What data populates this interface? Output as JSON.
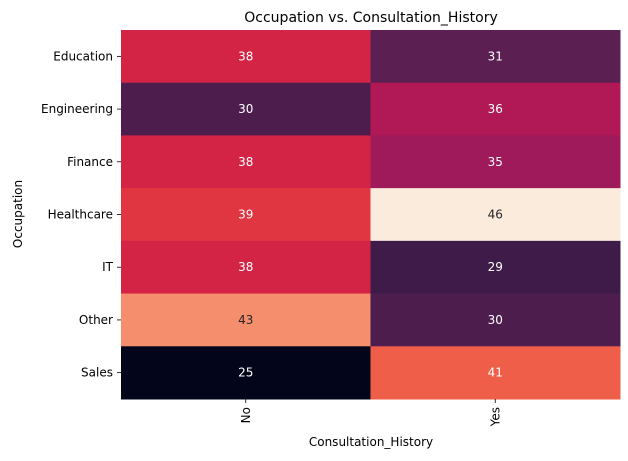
{
  "chart_data": {
    "type": "heatmap",
    "title": "Occupation vs. Consultation_History",
    "xlabel": "Consultation_History",
    "ylabel": "Occupation",
    "x_categories": [
      "No",
      "Yes"
    ],
    "y_categories": [
      "Education",
      "Engineering",
      "Finance",
      "Healthcare",
      "IT",
      "Other",
      "Sales"
    ],
    "values": [
      [
        38,
        31
      ],
      [
        30,
        36
      ],
      [
        38,
        35
      ],
      [
        39,
        46
      ],
      [
        38,
        29
      ],
      [
        43,
        30
      ],
      [
        25,
        41
      ]
    ],
    "color_range": [
      25,
      46
    ],
    "colormap": "rocket",
    "colorbar": false
  }
}
